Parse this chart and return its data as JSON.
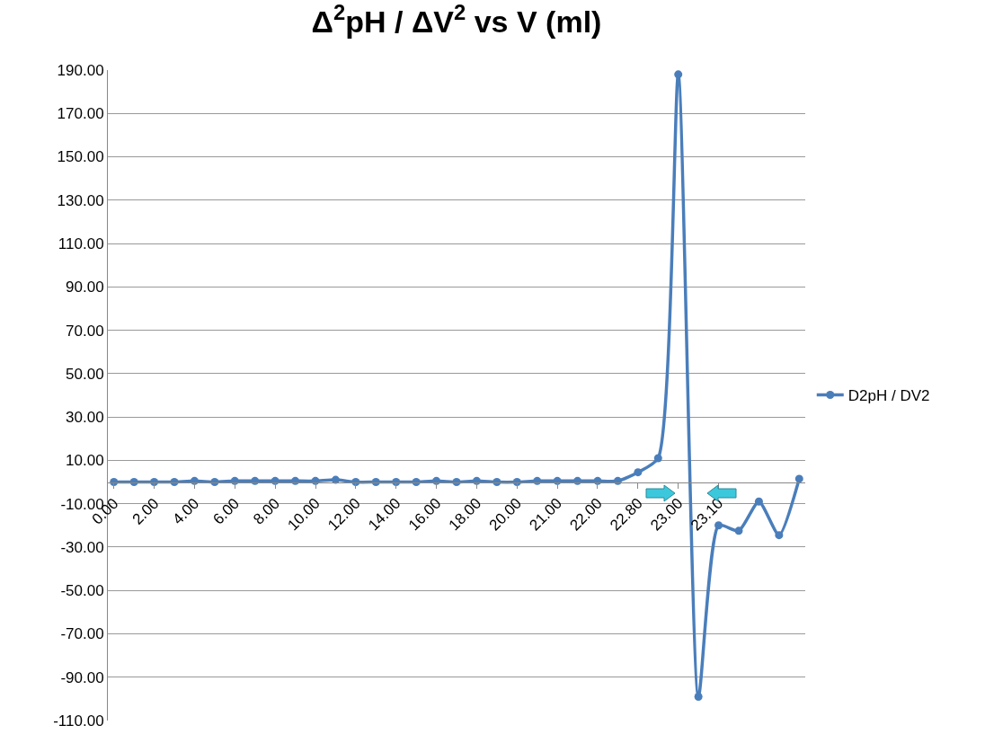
{
  "chart_data": {
    "type": "line",
    "title": "Δ$^{2}$pH / ΔV$^{2}$ vs V (ml)",
    "categories": [
      "0.00",
      null,
      "2.00",
      null,
      "4.00",
      null,
      "6.00",
      null,
      "8.00",
      null,
      "10.00",
      null,
      "12.00",
      null,
      "14.00",
      null,
      "16.00",
      null,
      "18.00",
      null,
      "20.00",
      null,
      "21.00",
      null,
      "22.00",
      null,
      "22.80",
      null,
      "23.00",
      null,
      "23.10",
      null,
      null,
      null,
      null
    ],
    "series": [
      {
        "name": "D2pH / DV2",
        "color": "#4a7ebb",
        "values": [
          0,
          0,
          0,
          0,
          0.5,
          0,
          0.5,
          0.5,
          0.5,
          0.5,
          0.5,
          1,
          0,
          0,
          0,
          0,
          0.5,
          0,
          0.5,
          0,
          0,
          0.5,
          0.5,
          0.5,
          0.5,
          0.5,
          4.5,
          11,
          188,
          -99,
          -20,
          -22.5,
          -9,
          -24.5,
          1.5
        ]
      }
    ],
    "ylim": [
      -110,
      190
    ],
    "yticks": [
      {
        "value": -110,
        "label": "-110.00"
      },
      {
        "value": -90,
        "label": "-90.00"
      },
      {
        "value": -70,
        "label": "-70.00"
      },
      {
        "value": -50,
        "label": "-50.00"
      },
      {
        "value": -30,
        "label": "-30.00"
      },
      {
        "value": -10,
        "label": "-10.00"
      },
      {
        "value": 10,
        "label": "10.00"
      },
      {
        "value": 30,
        "label": "30.00"
      },
      {
        "value": 50,
        "label": "50.00"
      },
      {
        "value": 70,
        "label": "70.00"
      },
      {
        "value": 90,
        "label": "90.00"
      },
      {
        "value": 110,
        "label": "110.00"
      },
      {
        "value": 130,
        "label": "130.00"
      },
      {
        "value": 150,
        "label": "150.00"
      },
      {
        "value": 170,
        "label": "170.00"
      },
      {
        "value": 190,
        "label": "190.00"
      }
    ],
    "grid": "y",
    "legend": "right",
    "marker": "circle",
    "line_style": "solid"
  }
}
